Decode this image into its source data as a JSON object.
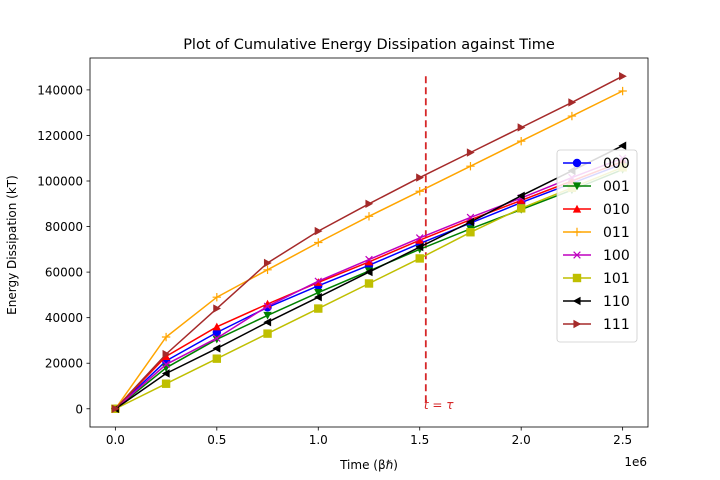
{
  "chart_data": {
    "type": "line",
    "title": "Plot of Cumulative Energy Dissipation against Time",
    "xlabel": "Time (βℏ)",
    "ylabel": "Energy Dissipation (kT)",
    "x_offset_text": "1e6",
    "xlim": [
      -0.125,
      2.625
    ],
    "ylim": [
      -8000,
      154000
    ],
    "x_ticks": [
      0.0,
      0.5,
      1.0,
      1.5,
      2.0,
      2.5
    ],
    "x_tick_labels": [
      "0.0",
      "0.5",
      "1.0",
      "1.5",
      "2.0",
      "2.5"
    ],
    "y_ticks": [
      0,
      20000,
      40000,
      60000,
      80000,
      100000,
      120000,
      140000
    ],
    "y_tick_labels": [
      "0",
      "20000",
      "40000",
      "60000",
      "80000",
      "100000",
      "120000",
      "140000"
    ],
    "grid": false,
    "legend_position": "right",
    "vline": {
      "x": 1.53,
      "label": "t = τ",
      "color": "#d62728"
    },
    "series": [
      {
        "name": "000",
        "color": "#0000ff",
        "marker": "circle",
        "x": [
          0,
          0.25,
          0.5,
          0.75,
          1.0,
          1.25,
          1.5,
          1.75,
          2.0,
          2.25,
          2.5
        ],
        "y": [
          0,
          21000,
          33500,
          44500,
          54000,
          63000,
          72500,
          81500,
          90500,
          99000,
          107500
        ]
      },
      {
        "name": "001",
        "color": "#008000",
        "marker": "triangle-down",
        "x": [
          0,
          0.25,
          0.5,
          0.75,
          1.0,
          1.25,
          1.5,
          1.75,
          2.0,
          2.25,
          2.5
        ],
        "y": [
          0,
          18000,
          30500,
          41000,
          51000,
          60500,
          70000,
          79000,
          87500,
          96000,
          105000
        ]
      },
      {
        "name": "010",
        "color": "#ff0000",
        "marker": "triangle-up",
        "x": [
          0,
          0.25,
          0.5,
          0.75,
          1.0,
          1.25,
          1.5,
          1.75,
          2.0,
          2.25,
          2.5
        ],
        "y": [
          0,
          23000,
          36000,
          46000,
          55500,
          64500,
          74000,
          83000,
          91500,
          100000,
          108500
        ]
      },
      {
        "name": "011",
        "color": "#ffa500",
        "marker": "plus",
        "x": [
          0,
          0.25,
          0.5,
          0.75,
          1.0,
          1.25,
          1.5,
          1.75,
          2.0,
          2.25,
          2.5
        ],
        "y": [
          0,
          31500,
          49000,
          61000,
          73000,
          84500,
          95500,
          106500,
          117500,
          128500,
          139500
        ]
      },
      {
        "name": "100",
        "color": "#bf00bf",
        "marker": "x",
        "x": [
          0,
          0.25,
          0.5,
          0.75,
          1.0,
          1.25,
          1.5,
          1.75,
          2.0,
          2.25,
          2.5
        ],
        "y": [
          0,
          19500,
          31000,
          45000,
          56000,
          65500,
          75000,
          84000,
          92500,
          101500,
          110000
        ]
      },
      {
        "name": "101",
        "color": "#bfbf00",
        "marker": "square",
        "x": [
          0,
          0.25,
          0.5,
          0.75,
          1.0,
          1.25,
          1.5,
          1.75,
          2.0,
          2.25,
          2.5
        ],
        "y": [
          0,
          11000,
          22000,
          33000,
          44000,
          55000,
          66000,
          77500,
          88000,
          97000,
          106000
        ]
      },
      {
        "name": "110",
        "color": "#000000",
        "marker": "triangle-left",
        "x": [
          0,
          0.25,
          0.5,
          0.75,
          1.0,
          1.25,
          1.5,
          1.75,
          2.0,
          2.25,
          2.5
        ],
        "y": [
          0,
          15500,
          26500,
          38000,
          49000,
          60000,
          71000,
          82000,
          93500,
          104500,
          115500
        ]
      },
      {
        "name": "111",
        "color": "#a52a2a",
        "marker": "triangle-right",
        "x": [
          0,
          0.25,
          0.5,
          0.75,
          1.0,
          1.25,
          1.5,
          1.75,
          2.0,
          2.25,
          2.5
        ],
        "y": [
          0,
          24000,
          44000,
          64000,
          78000,
          90000,
          101500,
          112500,
          123500,
          134500,
          146000
        ]
      }
    ]
  }
}
